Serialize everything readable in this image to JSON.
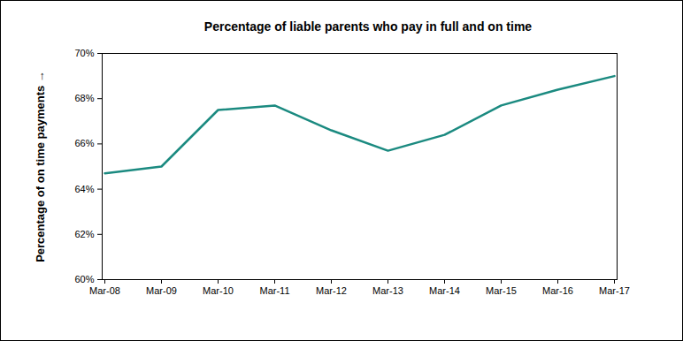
{
  "chart_data": {
    "type": "line",
    "title": "Percentage of liable parents who pay in full and on time",
    "y_label": "Percentage of on time payments",
    "categories": [
      "Mar-08",
      "Mar-09",
      "Mar-10",
      "Mar-11",
      "Mar-12",
      "Mar-13",
      "Mar-14",
      "Mar-15",
      "Mar-16",
      "Mar-17"
    ],
    "values": [
      64.7,
      65.0,
      67.5,
      67.7,
      66.6,
      65.7,
      66.4,
      67.7,
      68.4,
      69.0
    ],
    "color": "#1b8a80",
    "ylim": [
      60,
      70
    ],
    "yticks": [
      {
        "value": 60,
        "label": "60%"
      },
      {
        "value": 62,
        "label": "62%"
      },
      {
        "value": 64,
        "label": "64%"
      },
      {
        "value": 66,
        "label": "66%"
      },
      {
        "value": 68,
        "label": "68%"
      },
      {
        "value": 70,
        "label": "70%"
      }
    ],
    "grid": false
  }
}
